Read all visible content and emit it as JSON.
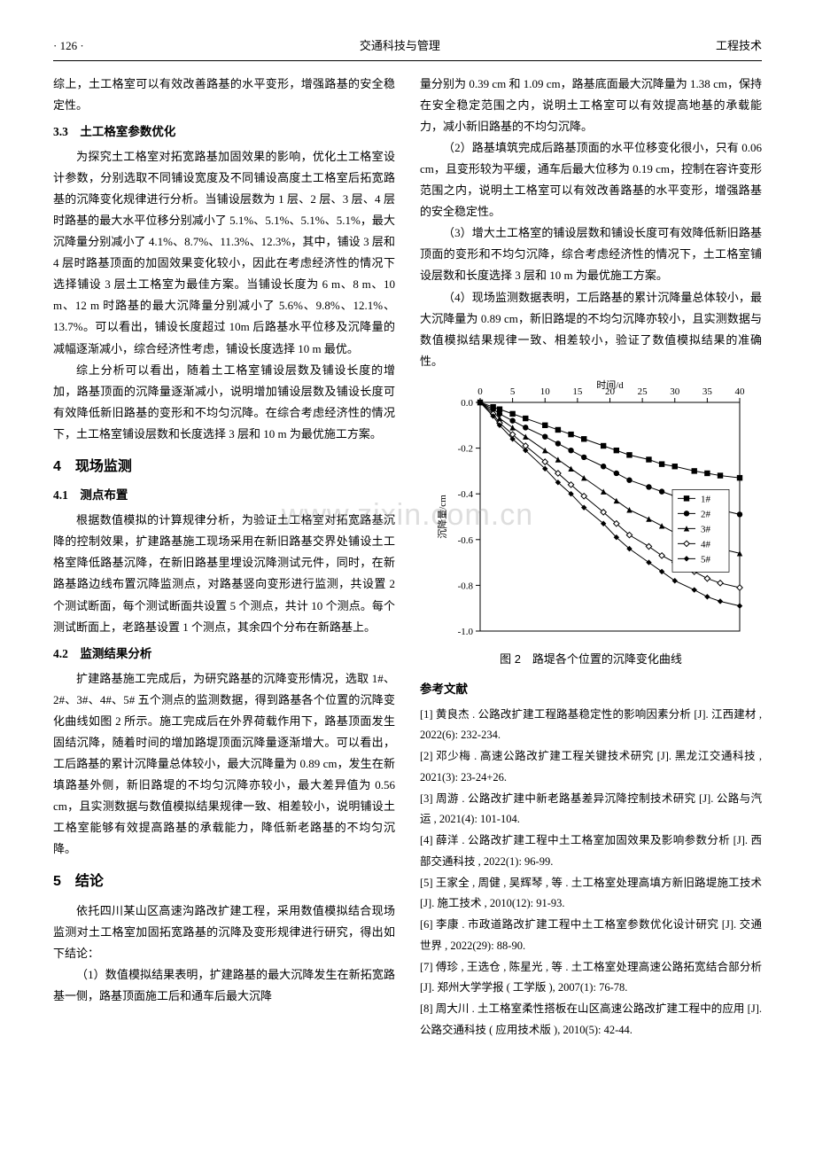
{
  "header": {
    "page_no": "· 126 ·",
    "journal": "交通科技与管理",
    "section": "工程技术"
  },
  "watermark": "www.zixin.com.cn",
  "left": {
    "p_cont": "综上，土工格室可以有效改善路基的水平变形，增强路基的安全稳定性。",
    "s33_title": "3.3　土工格室参数优化",
    "s33_p1": "为探究土工格室对拓宽路基加固效果的影响，优化土工格室设计参数，分别选取不同铺设宽度及不同铺设高度土工格室后拓宽路基的沉降变化规律进行分析。当铺设层数为 1 层、2 层、3 层、4 层时路基的最大水平位移分别减小了 5.1%、5.1%、5.1%、5.1%，最大沉降量分别减小了 4.1%、8.7%、11.3%、12.3%，其中，铺设 3 层和 4 层时路基顶面的加固效果变化较小，因此在考虑经济性的情况下选择铺设 3 层土工格室为最佳方案。当铺设长度为 6 m、8 m、10 m、12 m 时路基的最大沉降量分别减小了 5.6%、9.8%、12.1%、13.7%。可以看出，铺设长度超过 10m 后路基水平位移及沉降量的减幅逐渐减小，综合经济性考虑，铺设长度选择 10 m 最优。",
    "s33_p2": "综上分析可以看出，随着土工格室铺设层数及铺设长度的增加，路基顶面的沉降量逐渐减小，说明增加铺设层数及铺设长度可有效降低新旧路基的变形和不均匀沉降。在综合考虑经济性的情况下，土工格室铺设层数和长度选择 3 层和 10 m 为最优施工方案。",
    "s4_title": "4　现场监测",
    "s41_title": "4.1　测点布置",
    "s41_p1": "根据数值模拟的计算规律分析，为验证土工格室对拓宽路基沉降的控制效果，扩建路基施工现场采用在新旧路基交界处铺设土工格室降低路基沉降，在新旧路基里埋设沉降测试元件，同时，在新路基路边线布置沉降监测点，对路基竖向变形进行监测，共设置 2 个测试断面，每个测试断面共设置 5 个测点，共计 10 个测点。每个测试断面上，老路基设置 1 个测点，其余四个分布在新路基上。",
    "s42_title": "4.2　监测结果分析",
    "s42_p1": "扩建路基施工完成后，为研究路基的沉降变形情况，选取 1#、2#、3#、4#、5# 五个测点的监测数据，得到路基各个位置的沉降变化曲线如图 2 所示。施工完成后在外界荷载作用下，路基顶面发生固结沉降，随着时间的增加路堤顶面沉降量逐渐增大。可以看出，工后路基的累计沉降量总体较小，最大沉降量为 0.89 cm，发生在新填路基外侧，新旧路堤的不均匀沉降亦较小，最大差异值为 0.56 cm，且实测数据与数值模拟结果规律一致、相差较小，说明铺设土工格室能够有效提高路基的承载能力，降低新老路基的不均匀沉降。",
    "s5_title": "5　结论",
    "s5_p1": "依托四川某山区高速沟路改扩建工程，采用数值模拟结合现场监测对土工格室加固拓宽路基的沉降及变形规律进行研究，得出如下结论：",
    "s5_p2": "（1）数值模拟结果表明，扩建路基的最大沉降发生在新拓宽路基一侧，路基顶面施工后和通车后最大沉降"
  },
  "right": {
    "p_cont": "量分别为 0.39 cm 和 1.09 cm，路基底面最大沉降量为 1.38 cm，保持在安全稳定范围之内，说明土工格室可以有效提高地基的承载能力，减小新旧路基的不均匀沉降。",
    "p2": "（2）路基填筑完成后路基顶面的水平位移变化很小，只有 0.06 cm，且变形较为平缓，通车后最大位移为 0.19 cm，控制在容许变形范围之内，说明土工格室可以有效改善路基的水平变形，增强路基的安全稳定性。",
    "p3": "（3）增大土工格室的铺设层数和铺设长度可有效降低新旧路基顶面的变形和不均匀沉降，综合考虑经济性的情况下，土工格室铺设层数和长度选择 3 层和 10 m 为最优施工方案。",
    "p4": "（4）现场监测数据表明，工后路基的累计沉降量总体较小，最大沉降量为 0.89 cm，新旧路堤的不均匀沉降亦较小，且实测数据与数值模拟结果规律一致、相差较小，验证了数值模拟结果的准确性。",
    "fig_caption": "图 2　路堤各个位置的沉降变化曲线",
    "refs_title": "参考文献",
    "refs": [
      "[1] 黄良杰 . 公路改扩建工程路基稳定性的影响因素分析 [J]. 江西建材 , 2022(6): 232-234.",
      "[2] 邓少梅 . 高速公路改扩建工程关键技术研究 [J]. 黑龙江交通科技 , 2021(3): 23-24+26.",
      "[3] 周游 . 公路改扩建中新老路基差异沉降控制技术研究 [J]. 公路与汽运 , 2021(4): 101-104.",
      "[4] 薛洋 . 公路改扩建工程中土工格室加固效果及影响参数分析 [J]. 西部交通科技 , 2022(1): 96-99.",
      "[5] 王家全 , 周健 , 吴辉琴 , 等 . 土工格室处理高填方新旧路堤施工技术 [J]. 施工技术 , 2010(12): 91-93.",
      "[6] 李康 . 市政道路改扩建工程中土工格室参数优化设计研究 [J]. 交通世界 , 2022(29): 88-90.",
      "[7] 傅珍 , 王选仓 , 陈星光 , 等 . 土工格室处理高速公路拓宽结合部分析 [J]. 郑州大学学报 ( 工学版 ), 2007(1): 76-78.",
      "[8] 周大川 . 土工格室柔性搭板在山区高速公路改扩建工程中的应用 [J]. 公路交通科技 ( 应用技术版 ), 2010(5): 42-44."
    ]
  },
  "chart": {
    "type": "line-scatter",
    "xlabel": "时间/d",
    "ylabel": "沉降量/cm",
    "xticks": [
      0,
      5,
      10,
      15,
      20,
      25,
      30,
      35,
      40
    ],
    "yticks": [
      0.0,
      -0.2,
      -0.4,
      -0.6,
      -0.8,
      -1.0
    ],
    "xlim": [
      0,
      40
    ],
    "ylim": [
      -1.0,
      0.0
    ],
    "x_values": [
      0,
      2,
      3,
      5,
      7,
      10,
      12,
      14,
      16,
      19,
      21,
      23,
      26,
      28,
      30,
      33,
      35,
      37,
      40
    ],
    "series": [
      {
        "name": "1#",
        "marker": "square",
        "color": "#000000",
        "y": [
          0,
          -0.02,
          -0.03,
          -0.05,
          -0.07,
          -0.1,
          -0.12,
          -0.14,
          -0.16,
          -0.19,
          -0.21,
          -0.23,
          -0.25,
          -0.27,
          -0.28,
          -0.3,
          -0.31,
          -0.32,
          -0.33
        ]
      },
      {
        "name": "2#",
        "marker": "circle",
        "color": "#000000",
        "y": [
          0,
          -0.03,
          -0.05,
          -0.08,
          -0.11,
          -0.15,
          -0.18,
          -0.21,
          -0.24,
          -0.28,
          -0.31,
          -0.34,
          -0.37,
          -0.39,
          -0.41,
          -0.44,
          -0.46,
          -0.47,
          -0.49
        ]
      },
      {
        "name": "3#",
        "marker": "triangle",
        "color": "#000000",
        "y": [
          0,
          -0.04,
          -0.07,
          -0.11,
          -0.15,
          -0.21,
          -0.25,
          -0.29,
          -0.33,
          -0.39,
          -0.43,
          -0.47,
          -0.51,
          -0.54,
          -0.57,
          -0.6,
          -0.62,
          -0.64,
          -0.66
        ]
      },
      {
        "name": "4#",
        "marker": "diamond-open",
        "color": "#000000",
        "y": [
          0,
          -0.05,
          -0.09,
          -0.14,
          -0.19,
          -0.26,
          -0.31,
          -0.36,
          -0.41,
          -0.48,
          -0.53,
          -0.58,
          -0.63,
          -0.67,
          -0.7,
          -0.74,
          -0.77,
          -0.79,
          -0.81
        ]
      },
      {
        "name": "5#",
        "marker": "diamond",
        "color": "#000000",
        "y": [
          0,
          -0.06,
          -0.1,
          -0.16,
          -0.21,
          -0.29,
          -0.35,
          -0.4,
          -0.46,
          -0.53,
          -0.59,
          -0.64,
          -0.7,
          -0.74,
          -0.78,
          -0.82,
          -0.85,
          -0.87,
          -0.89
        ]
      }
    ],
    "legend_pos": "inside-right",
    "axis_color": "#000000",
    "background_color": "#ffffff",
    "fontsize": 11
  }
}
